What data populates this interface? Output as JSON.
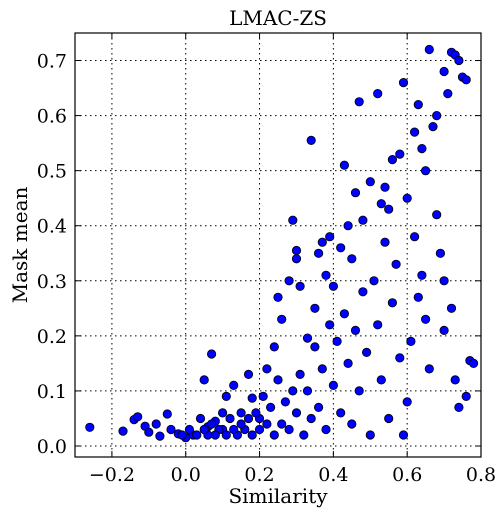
{
  "chart_data": {
    "type": "scatter",
    "title": "LMAC-ZS",
    "xlabel": "Similarity",
    "ylabel": "Mask mean",
    "xlim": [
      -0.3,
      0.8
    ],
    "ylim": [
      -0.02,
      0.75
    ],
    "xticks": [
      -0.2,
      0.0,
      0.2,
      0.4,
      0.6,
      0.8
    ],
    "xtick_labels": [
      "−0.2",
      "0.0",
      "0.2",
      "0.4",
      "0.6",
      "0.8"
    ],
    "yticks": [
      0.0,
      0.1,
      0.2,
      0.3,
      0.4,
      0.5,
      0.6,
      0.7
    ],
    "ytick_labels": [
      "0.0",
      "0.1",
      "0.2",
      "0.3",
      "0.4",
      "0.5",
      "0.6",
      "0.7"
    ],
    "grid": true,
    "marker_color": "#0000ff",
    "marker_edge_color": "#000000",
    "series": [
      {
        "points": [
          [
            -0.26,
            0.034
          ],
          [
            -0.17,
            0.027
          ],
          [
            -0.14,
            0.048
          ],
          [
            -0.13,
            0.053
          ],
          [
            -0.11,
            0.036
          ],
          [
            -0.1,
            0.025
          ],
          [
            -0.08,
            0.04
          ],
          [
            -0.07,
            0.018
          ],
          [
            -0.05,
            0.058
          ],
          [
            -0.04,
            0.03
          ],
          [
            -0.02,
            0.022
          ],
          [
            0.0,
            0.015
          ],
          [
            0.02,
            0.02
          ],
          [
            0.04,
            0.05
          ],
          [
            0.05,
            0.12
          ],
          [
            0.06,
            0.035
          ],
          [
            0.07,
            0.167
          ],
          [
            0.08,
            0.045
          ],
          [
            0.1,
            0.03
          ],
          [
            0.11,
            0.09
          ],
          [
            0.13,
            0.11
          ],
          [
            0.15,
            0.06
          ],
          [
            0.17,
            0.13
          ],
          [
            0.18,
            0.087
          ],
          [
            0.2,
            0.05
          ],
          [
            0.22,
            0.14
          ],
          [
            0.24,
            0.18
          ],
          [
            0.25,
            0.27
          ],
          [
            0.26,
            0.23
          ],
          [
            0.28,
            0.3
          ],
          [
            0.29,
            0.41
          ],
          [
            0.3,
            0.34
          ],
          [
            0.3,
            0.355
          ],
          [
            0.31,
            0.29
          ],
          [
            0.33,
            0.196
          ],
          [
            0.34,
            0.555
          ],
          [
            0.35,
            0.25
          ],
          [
            0.36,
            0.35
          ],
          [
            0.37,
            0.37
          ],
          [
            0.38,
            0.31
          ],
          [
            0.39,
            0.38
          ],
          [
            0.4,
            0.29
          ],
          [
            0.42,
            0.36
          ],
          [
            0.43,
            0.51
          ],
          [
            0.44,
            0.4
          ],
          [
            0.45,
            0.34
          ],
          [
            0.46,
            0.46
          ],
          [
            0.47,
            0.625
          ],
          [
            0.48,
            0.41
          ],
          [
            0.5,
            0.48
          ],
          [
            0.52,
            0.64
          ],
          [
            0.53,
            0.44
          ],
          [
            0.54,
            0.47
          ],
          [
            0.55,
            0.43
          ],
          [
            0.56,
            0.52
          ],
          [
            0.58,
            0.53
          ],
          [
            0.59,
            0.66
          ],
          [
            0.6,
            0.45
          ],
          [
            0.62,
            0.57
          ],
          [
            0.63,
            0.62
          ],
          [
            0.64,
            0.54
          ],
          [
            0.65,
            0.5
          ],
          [
            0.66,
            0.72
          ],
          [
            0.67,
            0.58
          ],
          [
            0.68,
            0.6
          ],
          [
            0.7,
            0.68
          ],
          [
            0.71,
            0.64
          ],
          [
            0.72,
            0.715
          ],
          [
            0.73,
            0.71
          ],
          [
            0.74,
            0.7
          ],
          [
            0.75,
            0.67
          ],
          [
            0.76,
            0.665
          ],
          [
            0.77,
            0.155
          ],
          [
            0.78,
            0.15
          ],
          [
            0.76,
            0.09
          ],
          [
            0.74,
            0.07
          ],
          [
            0.73,
            0.12
          ],
          [
            0.72,
            0.25
          ],
          [
            0.7,
            0.21
          ],
          [
            0.7,
            0.3
          ],
          [
            0.69,
            0.35
          ],
          [
            0.68,
            0.42
          ],
          [
            0.66,
            0.14
          ],
          [
            0.65,
            0.23
          ],
          [
            0.64,
            0.31
          ],
          [
            0.63,
            0.27
          ],
          [
            0.62,
            0.38
          ],
          [
            0.61,
            0.19
          ],
          [
            0.6,
            0.08
          ],
          [
            0.59,
            0.02
          ],
          [
            0.58,
            0.16
          ],
          [
            0.57,
            0.33
          ],
          [
            0.56,
            0.26
          ],
          [
            0.55,
            0.05
          ],
          [
            0.54,
            0.37
          ],
          [
            0.53,
            0.12
          ],
          [
            0.52,
            0.22
          ],
          [
            0.51,
            0.3
          ],
          [
            0.5,
            0.02
          ],
          [
            0.49,
            0.17
          ],
          [
            0.48,
            0.28
          ],
          [
            0.47,
            0.1
          ],
          [
            0.46,
            0.21
          ],
          [
            0.45,
            0.04
          ],
          [
            0.44,
            0.15
          ],
          [
            0.43,
            0.24
          ],
          [
            0.42,
            0.06
          ],
          [
            0.41,
            0.19
          ],
          [
            0.4,
            0.11
          ],
          [
            0.39,
            0.22
          ],
          [
            0.38,
            0.03
          ],
          [
            0.37,
            0.14
          ],
          [
            0.36,
            0.07
          ],
          [
            0.35,
            0.18
          ],
          [
            0.34,
            0.05
          ],
          [
            0.33,
            0.1
          ],
          [
            0.32,
            0.02
          ],
          [
            0.31,
            0.13
          ],
          [
            0.3,
            0.06
          ],
          [
            0.29,
            0.1
          ],
          [
            0.28,
            0.03
          ],
          [
            0.27,
            0.08
          ],
          [
            0.26,
            0.04
          ],
          [
            0.25,
            0.12
          ],
          [
            0.24,
            0.02
          ],
          [
            0.23,
            0.07
          ],
          [
            0.22,
            0.04
          ],
          [
            0.21,
            0.09
          ],
          [
            0.2,
            0.03
          ],
          [
            0.19,
            0.06
          ],
          [
            0.18,
            0.02
          ],
          [
            0.17,
            0.05
          ],
          [
            0.16,
            0.03
          ],
          [
            0.15,
            0.04
          ],
          [
            0.14,
            0.02
          ],
          [
            0.13,
            0.03
          ],
          [
            0.12,
            0.05
          ],
          [
            0.11,
            0.02
          ],
          [
            0.1,
            0.06
          ],
          [
            0.09,
            0.03
          ],
          [
            0.08,
            0.02
          ],
          [
            0.07,
            0.04
          ],
          [
            0.06,
            0.02
          ],
          [
            0.05,
            0.03
          ],
          [
            0.03,
            0.02
          ],
          [
            0.01,
            0.03
          ],
          [
            -0.01,
            0.02
          ]
        ]
      }
    ]
  }
}
